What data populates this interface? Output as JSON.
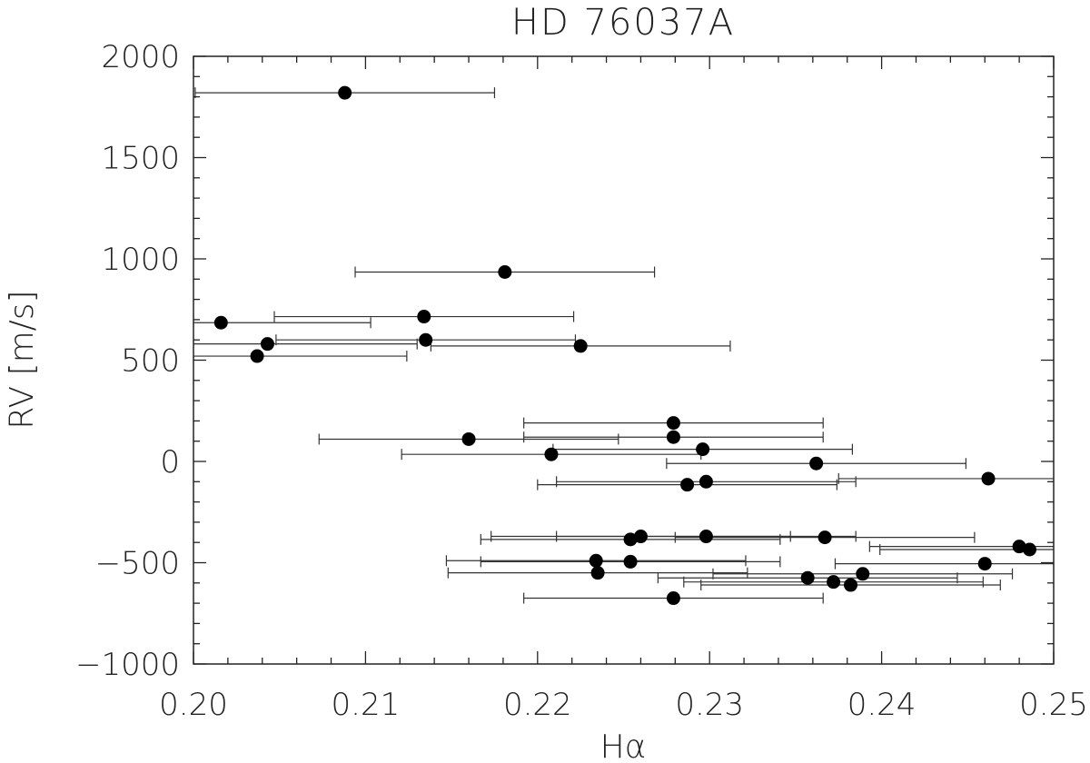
{
  "chart_data": {
    "type": "scatter",
    "title": "HD 76037A",
    "xlabel": "Hα",
    "ylabel": "RV [m/s]",
    "xlim": [
      0.2,
      0.25
    ],
    "ylim": [
      -1000,
      2000
    ],
    "x_ticks": [
      0.2,
      0.21,
      0.22,
      0.23,
      0.24,
      0.25
    ],
    "x_tick_labels": [
      "0.20",
      "0.21",
      "0.22",
      "0.23",
      "0.24",
      "0.25"
    ],
    "y_ticks": [
      -1000,
      -500,
      0,
      500,
      1000,
      1500,
      2000
    ],
    "y_tick_labels": [
      "−1000",
      "−500",
      "0",
      "500",
      "1000",
      "1500",
      "2000"
    ],
    "grid": false,
    "points": [
      {
        "x": 0.2088,
        "y": 1820,
        "xerr": 0.0087
      },
      {
        "x": 0.2181,
        "y": 935,
        "xerr": 0.0087
      },
      {
        "x": 0.2016,
        "y": 685,
        "xerr": 0.0087
      },
      {
        "x": 0.2134,
        "y": 715,
        "xerr": 0.0087
      },
      {
        "x": 0.2043,
        "y": 580,
        "xerr": 0.0087
      },
      {
        "x": 0.2135,
        "y": 600,
        "xerr": 0.0087
      },
      {
        "x": 0.2037,
        "y": 520,
        "xerr": 0.0087
      },
      {
        "x": 0.2225,
        "y": 570,
        "xerr": 0.0087
      },
      {
        "x": 0.2279,
        "y": 190,
        "xerr": 0.0087
      },
      {
        "x": 0.2279,
        "y": 120,
        "xerr": 0.0087
      },
      {
        "x": 0.216,
        "y": 110,
        "xerr": 0.0087
      },
      {
        "x": 0.2296,
        "y": 60,
        "xerr": 0.0087
      },
      {
        "x": 0.2208,
        "y": 35,
        "xerr": 0.0087
      },
      {
        "x": 0.2362,
        "y": -10,
        "xerr": 0.0087
      },
      {
        "x": 0.2462,
        "y": -85,
        "xerr": 0.0087
      },
      {
        "x": 0.2298,
        "y": -100,
        "xerr": 0.0087
      },
      {
        "x": 0.2287,
        "y": -115,
        "xerr": 0.0087
      },
      {
        "x": 0.226,
        "y": -370,
        "xerr": 0.0087
      },
      {
        "x": 0.2298,
        "y": -370,
        "xerr": 0.0087
      },
      {
        "x": 0.2254,
        "y": -385,
        "xerr": 0.0087
      },
      {
        "x": 0.2367,
        "y": -375,
        "xerr": 0.0087
      },
      {
        "x": 0.248,
        "y": -420,
        "xerr": 0.0087
      },
      {
        "x": 0.2486,
        "y": -435,
        "xerr": 0.0087
      },
      {
        "x": 0.2234,
        "y": -490,
        "xerr": 0.0087
      },
      {
        "x": 0.2254,
        "y": -495,
        "xerr": 0.0087
      },
      {
        "x": 0.246,
        "y": -505,
        "xerr": 0.0087
      },
      {
        "x": 0.2235,
        "y": -550,
        "xerr": 0.0087
      },
      {
        "x": 0.2389,
        "y": -555,
        "xerr": 0.0087
      },
      {
        "x": 0.2357,
        "y": -575,
        "xerr": 0.0087
      },
      {
        "x": 0.2372,
        "y": -595,
        "xerr": 0.0087
      },
      {
        "x": 0.2382,
        "y": -610,
        "xerr": 0.0087
      },
      {
        "x": 0.2279,
        "y": -675,
        "xerr": 0.0087
      }
    ]
  }
}
